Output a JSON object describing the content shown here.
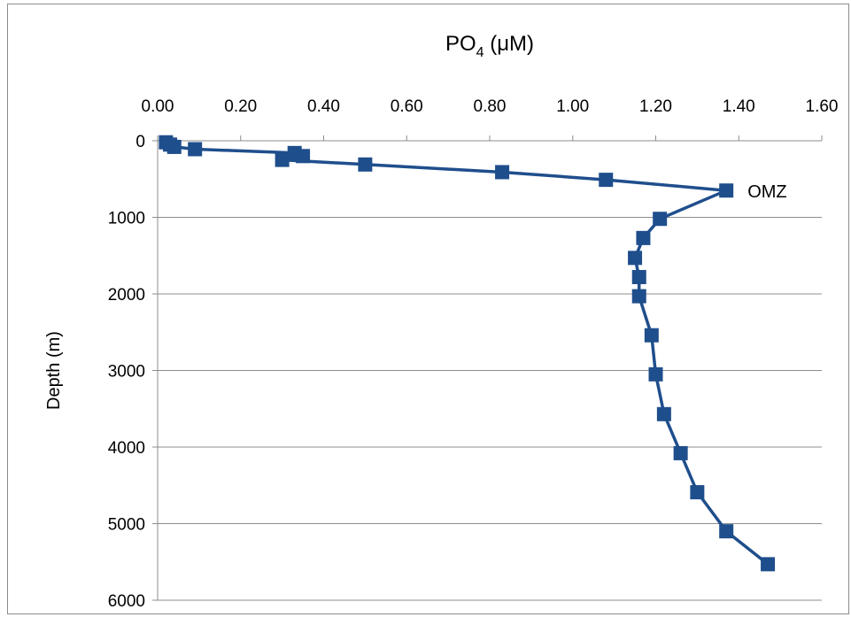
{
  "chart_data": {
    "type": "line",
    "title": "PO",
    "title_subscript": "4",
    "title_suffix": " (μM)",
    "xlabel": "PO4 (μM)",
    "ylabel": "Depth (m)",
    "x_axis_position": "top",
    "y_axis_inverted": true,
    "xlim": [
      0,
      1.6
    ],
    "ylim": [
      0,
      6000
    ],
    "x_ticks": [
      "0.00",
      "0.20",
      "0.40",
      "0.60",
      "0.80",
      "1.00",
      "1.20",
      "1.40",
      "1.60"
    ],
    "x_tick_values": [
      0,
      0.2,
      0.4,
      0.6,
      0.8,
      1.0,
      1.2,
      1.4,
      1.6
    ],
    "y_ticks": [
      "0",
      "1000",
      "2000",
      "3000",
      "4000",
      "5000",
      "6000"
    ],
    "y_tick_values": [
      0,
      1000,
      2000,
      3000,
      4000,
      5000,
      6000
    ],
    "grid": "horizontal",
    "series": [
      {
        "color": "#1f4e8c",
        "marker": "square",
        "points": [
          {
            "x": 0.02,
            "y": 20
          },
          {
            "x": 0.03,
            "y": 50
          },
          {
            "x": 0.04,
            "y": 80
          },
          {
            "x": 0.09,
            "y": 110
          },
          {
            "x": 0.33,
            "y": 160
          },
          {
            "x": 0.35,
            "y": 200
          },
          {
            "x": 0.3,
            "y": 250
          },
          {
            "x": 0.5,
            "y": 310
          },
          {
            "x": 0.83,
            "y": 410
          },
          {
            "x": 1.08,
            "y": 510
          },
          {
            "x": 1.37,
            "y": 650
          },
          {
            "x": 1.21,
            "y": 1020
          },
          {
            "x": 1.17,
            "y": 1270
          },
          {
            "x": 1.15,
            "y": 1530
          },
          {
            "x": 1.16,
            "y": 1780
          },
          {
            "x": 1.16,
            "y": 2030
          },
          {
            "x": 1.19,
            "y": 2540
          },
          {
            "x": 1.2,
            "y": 3050
          },
          {
            "x": 1.22,
            "y": 3570
          },
          {
            "x": 1.26,
            "y": 4080
          },
          {
            "x": 1.3,
            "y": 4590
          },
          {
            "x": 1.37,
            "y": 5100
          },
          {
            "x": 1.47,
            "y": 5530
          }
        ]
      }
    ],
    "annotations": [
      {
        "text": "OMZ",
        "x": 1.37,
        "y": 650
      }
    ]
  }
}
